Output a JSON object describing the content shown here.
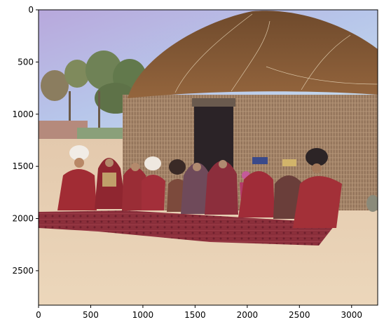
{
  "chart_data": {
    "type": "image",
    "image_description": "Colorized photograph of a family group seated on a large red patterned rug in front of a round reed-walled yurt with a domed thatch roof and dark doorway; trees and a low wall at left, sandy ground.",
    "xlim": [
      0,
      3250
    ],
    "ylim": [
      2830,
      0
    ],
    "xticks": [
      0,
      500,
      1000,
      1500,
      2000,
      2500,
      3000
    ],
    "yticks": [
      0,
      500,
      1000,
      1500,
      2000,
      2500
    ],
    "xtick_labels": [
      "0",
      "500",
      "1000",
      "1500",
      "2000",
      "2500",
      "3000"
    ],
    "ytick_labels": [
      "0",
      "500",
      "1000",
      "1500",
      "2000",
      "2500"
    ],
    "grid": false,
    "title": "",
    "xlabel": "",
    "ylabel": "",
    "colors": {
      "sky": "#b5c2e8",
      "roof": "#8a5a34",
      "walls": "#a8876a",
      "door": "#2c2428",
      "rug": "#8c2f3a",
      "ground": "#e2c6a6",
      "clothing": "#9b2f38"
    }
  }
}
